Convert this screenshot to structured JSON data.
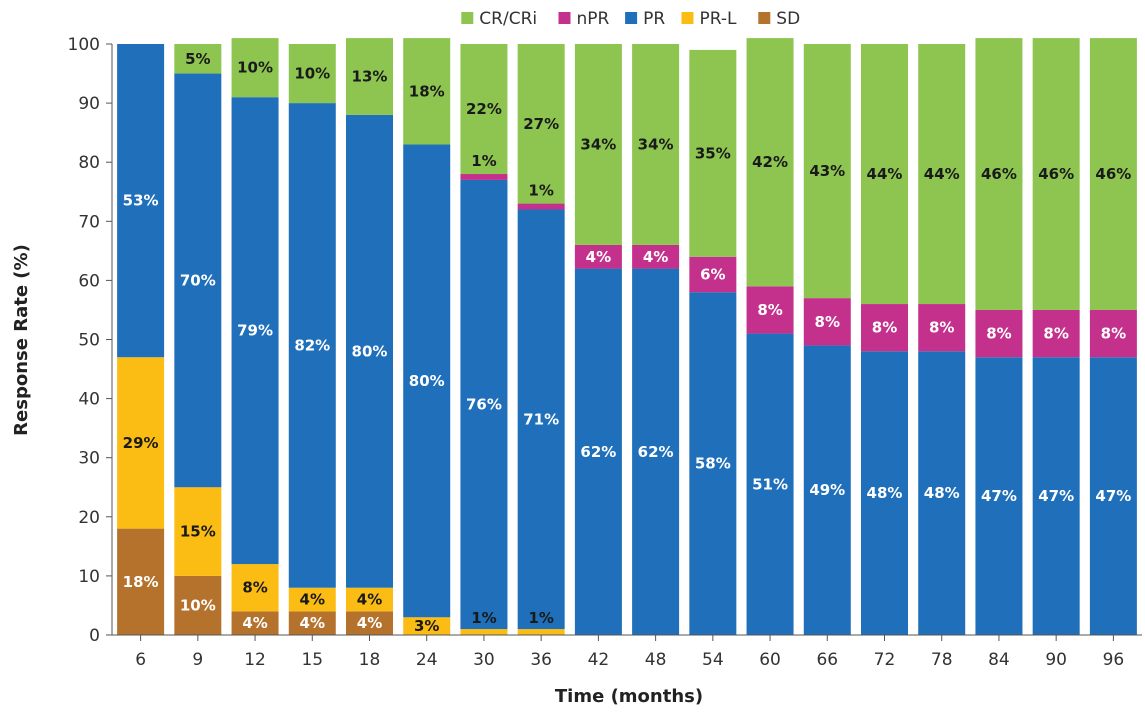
{
  "chart_data": {
    "type": "bar",
    "stacked": true,
    "title": "",
    "xlabel": "Time (months)",
    "ylabel": "Response Rate (%)",
    "ylim": [
      0,
      100
    ],
    "yticks": [
      0,
      10,
      20,
      30,
      40,
      50,
      60,
      70,
      80,
      90,
      100
    ],
    "grid": false,
    "legend_position": "top-center",
    "categories": [
      "6",
      "9",
      "12",
      "15",
      "18",
      "24",
      "30",
      "36",
      "42",
      "48",
      "54",
      "60",
      "66",
      "72",
      "78",
      "84",
      "90",
      "96"
    ],
    "series": [
      {
        "name": "SD",
        "color": "#b5722c",
        "label_color": "#ffffff",
        "values": [
          18,
          10,
          4,
          4,
          4,
          0,
          0,
          0,
          0,
          0,
          0,
          0,
          0,
          0,
          0,
          0,
          0,
          0
        ],
        "labels": [
          "18%",
          "10%",
          "4%",
          "4%",
          "4%",
          "",
          "",
          "",
          "",
          "",
          "",
          "",
          "",
          "",
          "",
          "",
          "",
          ""
        ]
      },
      {
        "name": "PR-L",
        "color": "#fbbd13",
        "label_color": "#1a1a1a",
        "values": [
          29,
          15,
          8,
          4,
          4,
          3,
          1,
          1,
          0,
          0,
          0,
          0,
          0,
          0,
          0,
          0,
          0,
          0
        ],
        "labels": [
          "29%",
          "15%",
          "8%",
          "4%",
          "4%",
          "3%",
          "1%",
          "1%",
          "",
          "",
          "",
          "",
          "",
          "",
          "",
          "",
          "",
          ""
        ]
      },
      {
        "name": "PR",
        "color": "#1f6fba",
        "label_color": "#ffffff",
        "values": [
          53,
          70,
          79,
          82,
          80,
          80,
          76,
          71,
          62,
          62,
          58,
          51,
          49,
          48,
          48,
          47,
          47,
          47
        ],
        "labels": [
          "53%",
          "70%",
          "79%",
          "82%",
          "80%",
          "80%",
          "76%",
          "71%",
          "62%",
          "62%",
          "58%",
          "51%",
          "49%",
          "48%",
          "48%",
          "47%",
          "47%",
          "47%"
        ]
      },
      {
        "name": "nPR",
        "color": "#c4318d",
        "label_color": "#ffffff",
        "values": [
          0,
          0,
          0,
          0,
          0,
          0,
          1,
          1,
          4,
          4,
          6,
          8,
          8,
          8,
          8,
          8,
          8,
          8
        ],
        "labels": [
          "",
          "",
          "",
          "",
          "",
          "",
          "1%",
          "1%",
          "4%",
          "4%",
          "6%",
          "8%",
          "8%",
          "8%",
          "8%",
          "8%",
          "8%",
          "8%"
        ]
      },
      {
        "name": "CR/CRi",
        "color": "#8dc550",
        "label_color": "#1a1a1a",
        "values": [
          0,
          5,
          10,
          10,
          13,
          18,
          22,
          27,
          34,
          34,
          35,
          42,
          43,
          44,
          44,
          46,
          46,
          46
        ],
        "labels": [
          "",
          "5%",
          "10%",
          "10%",
          "13%",
          "18%",
          "22%",
          "27%",
          "34%",
          "34%",
          "35%",
          "42%",
          "43%",
          "44%",
          "44%",
          "46%",
          "46%",
          "46%"
        ]
      }
    ],
    "legend_order": [
      "CR/CRi",
      "nPR",
      "PR",
      "PR-L",
      "SD"
    ]
  }
}
